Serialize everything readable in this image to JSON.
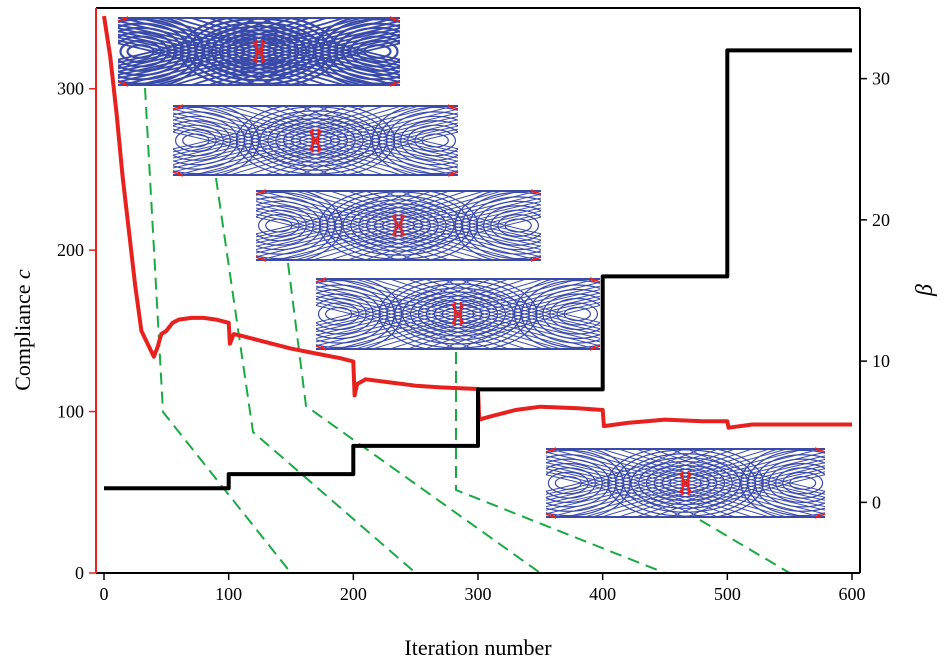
{
  "chart_data": {
    "type": "line",
    "xlabel": "Iteration number",
    "ylabel": "Compliance",
    "ylabel_italic": "c",
    "y2label": "β",
    "xlim": [
      0,
      600
    ],
    "ylim": [
      0,
      350
    ],
    "y2lim": [
      -5,
      35
    ],
    "xticks": [
      "0",
      "100",
      "200",
      "300",
      "400",
      "500",
      "600"
    ],
    "yticks": [
      "0",
      "100",
      "200",
      "300"
    ],
    "y2ticks": [
      "0",
      "10",
      "20",
      "30"
    ],
    "grid": false,
    "colors": {
      "compliance": "#e8201e",
      "beta": "#000000",
      "leader": "#1aaa44",
      "lattice": "#3a4aa8",
      "support": "#e8201e"
    },
    "series": [
      {
        "axis": "left",
        "x": [
          0,
          5,
          10,
          15,
          20,
          25,
          30,
          35,
          40,
          43,
          46,
          50,
          55,
          60,
          70,
          80,
          90,
          100,
          101,
          104,
          110,
          130,
          150,
          170,
          190,
          200,
          201,
          203,
          210,
          230,
          250,
          270,
          300,
          301,
          310,
          330,
          350,
          380,
          400,
          401,
          420,
          450,
          480,
          500,
          501,
          520,
          550,
          600
        ],
        "y": [
          345,
          320,
          285,
          245,
          212,
          178,
          150,
          142,
          134,
          140,
          148,
          150,
          155,
          157,
          158,
          158,
          157,
          155,
          142,
          148,
          147,
          143,
          139,
          136,
          133,
          131,
          110,
          117,
          120,
          118,
          116,
          115,
          114,
          95,
          97,
          101,
          103,
          102,
          101,
          91,
          93,
          95,
          94,
          94,
          90,
          92,
          92,
          92
        ]
      },
      {
        "axis": "right",
        "x": [
          0,
          100,
          100,
          200,
          200,
          300,
          300,
          400,
          400,
          500,
          500,
          600
        ],
        "y": [
          1,
          1,
          2,
          2,
          4,
          4,
          8,
          8,
          16,
          16,
          32,
          32
        ]
      }
    ],
    "insets_at_iteration": [
      150,
      250,
      350,
      450,
      550
    ]
  }
}
